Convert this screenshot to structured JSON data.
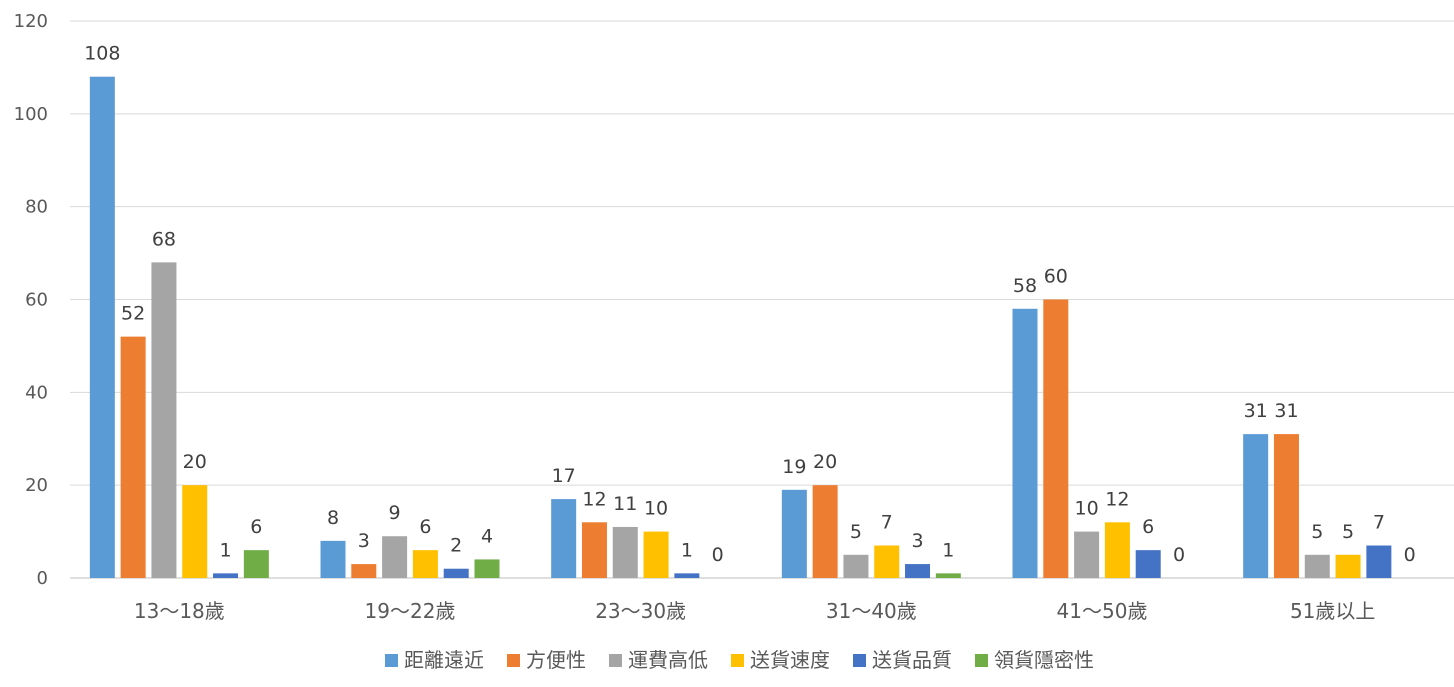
{
  "chart_data": {
    "type": "bar",
    "title": "",
    "xlabel": "",
    "ylabel": "",
    "ylim": [
      0,
      120
    ],
    "yticks": [
      0,
      20,
      40,
      60,
      80,
      100,
      120
    ],
    "grid": true,
    "legend_position": "bottom",
    "categories": [
      "13～18歲",
      "19～22歲",
      "23～30歲",
      "31～40歲",
      "41～50歲",
      "51歲以上"
    ],
    "series": [
      {
        "name": "距離遠近",
        "color": "#5b9bd5",
        "values": [
          108,
          8,
          17,
          19,
          58,
          31
        ]
      },
      {
        "name": "方便性",
        "color": "#ed7d31",
        "values": [
          52,
          3,
          12,
          20,
          60,
          31
        ]
      },
      {
        "name": "運費高低",
        "color": "#a5a5a5",
        "values": [
          68,
          9,
          11,
          5,
          10,
          5
        ]
      },
      {
        "name": "送貨速度",
        "color": "#ffc000",
        "values": [
          20,
          6,
          10,
          7,
          12,
          5
        ]
      },
      {
        "name": "送貨品質",
        "color": "#4472c4",
        "values": [
          1,
          2,
          1,
          3,
          6,
          7
        ]
      },
      {
        "name": "領貨隱密性",
        "color": "#70ad47",
        "values": [
          6,
          4,
          0,
          1,
          0,
          0
        ]
      }
    ]
  }
}
